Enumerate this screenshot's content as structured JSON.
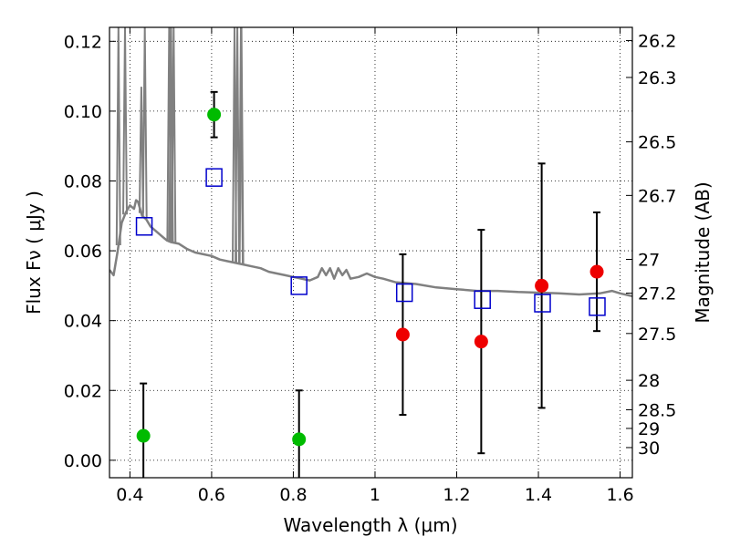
{
  "chart_data": {
    "type": "scatter",
    "title": "",
    "xlabel": "Wavelength  λ (μm)",
    "ylabel": "Flux  Fν  ( μJy )",
    "ylabel_right": "Magnitude (AB)",
    "xlim": [
      0.35,
      1.63
    ],
    "ylim": [
      -0.005,
      0.124
    ],
    "grid": true,
    "x_ticks": [
      {
        "v": 0.4,
        "label": "0.4"
      },
      {
        "v": 0.6,
        "label": "0.6"
      },
      {
        "v": 0.8,
        "label": "0.8"
      },
      {
        "v": 1.0,
        "label": "1"
      },
      {
        "v": 1.2,
        "label": "1.2"
      },
      {
        "v": 1.4,
        "label": "1.4"
      },
      {
        "v": 1.6,
        "label": "1.6"
      }
    ],
    "y_ticks": [
      {
        "v": 0.0,
        "label": "0.00"
      },
      {
        "v": 0.02,
        "label": "0.02"
      },
      {
        "v": 0.04,
        "label": "0.04"
      },
      {
        "v": 0.06,
        "label": "0.06"
      },
      {
        "v": 0.08,
        "label": "0.08"
      },
      {
        "v": 0.1,
        "label": "0.10"
      },
      {
        "v": 0.12,
        "label": "0.12"
      }
    ],
    "mag_ticks": [
      {
        "v": 26.2,
        "label": "26.2"
      },
      {
        "v": 26.3,
        "label": "26.3"
      },
      {
        "v": 26.5,
        "label": "26.5"
      },
      {
        "v": 26.7,
        "label": "26.7"
      },
      {
        "v": 27.0,
        "label": "27"
      },
      {
        "v": 27.2,
        "label": "27.2"
      },
      {
        "v": 27.5,
        "label": "27.5"
      },
      {
        "v": 28.0,
        "label": "28"
      },
      {
        "v": 28.5,
        "label": "28.5"
      },
      {
        "v": 29.0,
        "label": "29"
      },
      {
        "v": 30.0,
        "label": "30"
      }
    ],
    "model_spectrum": {
      "color": "#808080",
      "points": [
        [
          0.35,
          0.0545
        ],
        [
          0.36,
          0.053
        ],
        [
          0.37,
          0.06
        ],
        [
          0.38,
          0.068
        ],
        [
          0.39,
          0.071
        ],
        [
          0.4,
          0.073
        ],
        [
          0.41,
          0.072
        ],
        [
          0.415,
          0.0745
        ],
        [
          0.42,
          0.074
        ],
        [
          0.43,
          0.07
        ],
        [
          0.44,
          0.069
        ],
        [
          0.45,
          0.067
        ],
        [
          0.46,
          0.066
        ],
        [
          0.47,
          0.065
        ],
        [
          0.48,
          0.064
        ],
        [
          0.49,
          0.063
        ],
        [
          0.5,
          0.0625
        ],
        [
          0.52,
          0.062
        ],
        [
          0.54,
          0.0605
        ],
        [
          0.56,
          0.0595
        ],
        [
          0.58,
          0.059
        ],
        [
          0.6,
          0.0585
        ],
        [
          0.62,
          0.0575
        ],
        [
          0.64,
          0.057
        ],
        [
          0.66,
          0.0565
        ],
        [
          0.68,
          0.056
        ],
        [
          0.7,
          0.0555
        ],
        [
          0.72,
          0.055
        ],
        [
          0.74,
          0.054
        ],
        [
          0.76,
          0.0535
        ],
        [
          0.78,
          0.053
        ],
        [
          0.8,
          0.0525
        ],
        [
          0.82,
          0.052
        ],
        [
          0.84,
          0.0515
        ],
        [
          0.86,
          0.0525
        ],
        [
          0.87,
          0.055
        ],
        [
          0.88,
          0.053
        ],
        [
          0.89,
          0.055
        ],
        [
          0.9,
          0.052
        ],
        [
          0.91,
          0.055
        ],
        [
          0.92,
          0.053
        ],
        [
          0.93,
          0.0545
        ],
        [
          0.94,
          0.052
        ],
        [
          0.96,
          0.0525
        ],
        [
          0.98,
          0.0535
        ],
        [
          1.0,
          0.0525
        ],
        [
          1.02,
          0.052
        ],
        [
          1.05,
          0.051
        ],
        [
          1.1,
          0.0505
        ],
        [
          1.15,
          0.0495
        ],
        [
          1.2,
          0.049
        ],
        [
          1.25,
          0.0485
        ],
        [
          1.3,
          0.0485
        ],
        [
          1.35,
          0.0482
        ],
        [
          1.4,
          0.048
        ],
        [
          1.45,
          0.0478
        ],
        [
          1.5,
          0.0475
        ],
        [
          1.55,
          0.0478
        ],
        [
          1.58,
          0.0485
        ],
        [
          1.6,
          0.0478
        ],
        [
          1.63,
          0.047
        ]
      ],
      "lines": [
        {
          "x": 0.372,
          "peak": 0.124
        },
        {
          "x": 0.388,
          "peak": 0.124
        },
        {
          "x": 0.428,
          "peak": 0.107
        },
        {
          "x": 0.4365,
          "peak": 0.124
        },
        {
          "x": 0.496,
          "peak": 0.124
        },
        {
          "x": 0.5007,
          "peak": 0.124
        },
        {
          "x": 0.507,
          "peak": 0.124
        },
        {
          "x": 0.656,
          "peak": 0.124
        },
        {
          "x": 0.663,
          "peak": 0.124
        },
        {
          "x": 0.673,
          "peak": 0.124
        },
        {
          "x": 0.6716,
          "peak": 0.124
        }
      ]
    },
    "series": [
      {
        "marker": "open-square",
        "color": "#0000cc",
        "points": [
          {
            "x": 0.435,
            "y": 0.067
          },
          {
            "x": 0.606,
            "y": 0.081
          },
          {
            "x": 0.814,
            "y": 0.05
          },
          {
            "x": 1.072,
            "y": 0.048
          },
          {
            "x": 1.263,
            "y": 0.046
          },
          {
            "x": 1.41,
            "y": 0.045
          },
          {
            "x": 1.544,
            "y": 0.044
          }
        ]
      },
      {
        "marker": "filled-circle",
        "color": "#00bb00",
        "points": [
          {
            "x": 0.433,
            "y": 0.007,
            "err_lo": 0.027,
            "err_hi": 0.015
          },
          {
            "x": 0.606,
            "y": 0.099,
            "err_lo": 0.0065,
            "err_hi": 0.0065
          },
          {
            "x": 0.814,
            "y": 0.006,
            "err_lo": 0.026,
            "err_hi": 0.014
          }
        ]
      },
      {
        "marker": "filled-circle",
        "color": "#ee0000",
        "points": [
          {
            "x": 1.068,
            "y": 0.036,
            "err_lo": 0.023,
            "err_hi": 0.023
          },
          {
            "x": 1.26,
            "y": 0.034,
            "err_lo": 0.032,
            "err_hi": 0.032
          },
          {
            "x": 1.408,
            "y": 0.05,
            "err_lo": 0.035,
            "err_hi": 0.035
          },
          {
            "x": 1.543,
            "y": 0.054,
            "err_lo": 0.017,
            "err_hi": 0.017
          }
        ]
      }
    ]
  }
}
